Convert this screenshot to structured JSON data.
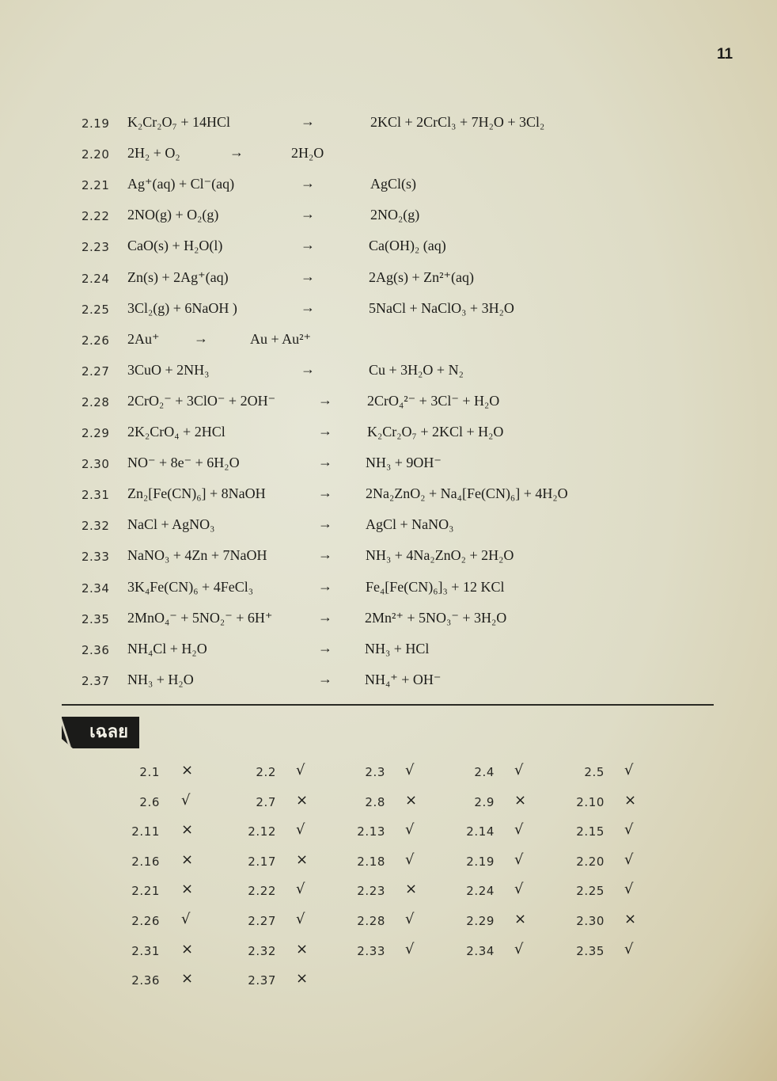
{
  "page_number": "11",
  "equations": [
    {
      "num": "2.19",
      "reactants": "K₂Cr₂O₇ + 14HCl",
      "arrow": "→",
      "products": "2KCl + 2CrCl₃ + 7H₂O + 3Cl₂"
    },
    {
      "num": "2.20",
      "reactants": "2H₂ + O₂",
      "arrow": "→",
      "products": "2H₂O"
    },
    {
      "num": "2.21",
      "reactants": "Ag⁺(aq) + Cl⁻(aq)",
      "arrow": "→",
      "products": "AgCl(s)"
    },
    {
      "num": "2.22",
      "reactants": "2NO(g) + O₂(g)",
      "arrow": "→",
      "products": "2NO₂(g)"
    },
    {
      "num": "2.23",
      "reactants": "CaO(s) + H₂O(l)",
      "arrow": "→",
      "products": "Ca(OH)₂ (aq)"
    },
    {
      "num": "2.24",
      "reactants": "Zn(s) + 2Ag⁺(aq)",
      "arrow": "→",
      "products": "2Ag(s) + Zn²⁺(aq)"
    },
    {
      "num": "2.25",
      "reactants": "3Cl₂(g) + 6NaOH )",
      "arrow": "→",
      "products": "5NaCl + NaClO₃ + 3H₂O"
    },
    {
      "num": "2.26",
      "reactants": "2Au⁺",
      "arrow": "→",
      "products": "Au + Au²⁺"
    },
    {
      "num": "2.27",
      "reactants": "3CuO + 2NH₃",
      "arrow": "→",
      "products": "Cu + 3H₂O + N₂"
    },
    {
      "num": "2.28",
      "reactants": "2CrO₂⁻ + 3ClO⁻ + 2OH⁻",
      "arrow": "→",
      "products": "2CrO₄²⁻ + 3Cl⁻ + H₂O"
    },
    {
      "num": "2.29",
      "reactants": "2K₂CrO₄ + 2HCl",
      "arrow": "→",
      "products": "K₂Cr₂O₇ + 2KCl + H₂O"
    },
    {
      "num": "2.30",
      "reactants": "NO⁻ + 8e⁻ + 6H₂O",
      "arrow": "→",
      "products": "NH₃ + 9OH⁻"
    },
    {
      "num": "2.31",
      "reactants": "Zn₂[Fe(CN)₆] + 8NaOH",
      "arrow": "→",
      "products": "2Na₂ZnO₂ + Na₄[Fe(CN)₆] + 4H₂O"
    },
    {
      "num": "2.32",
      "reactants": "NaCl + AgNO₃",
      "arrow": "→",
      "products": "AgCl + NaNO₃"
    },
    {
      "num": "2.33",
      "reactants": "NaNO₃ + 4Zn + 7NaOH",
      "arrow": "→",
      "products": "NH₃ + 4Na₂ZnO₂ + 2H₂O"
    },
    {
      "num": "2.34",
      "reactants": "3K₄Fe(CN)₆ + 4FeCl₃",
      "arrow": "→",
      "products": "Fe₄[Fe(CN)₆]₃ + 12 KCl"
    },
    {
      "num": "2.35",
      "reactants": "2MnO₄⁻ + 5NO₂⁻ + 6H⁺",
      "arrow": "→",
      "products": "2Mn²⁺ + 5NO₃⁻ + 3H₂O"
    },
    {
      "num": "2.36",
      "reactants": "NH₄Cl + H₂O",
      "arrow": "→",
      "products": "NH₃ + HCl"
    },
    {
      "num": "2.37",
      "reactants": "NH₃ + H₂O",
      "arrow": "→",
      "products": "NH₄⁺ + OH⁻"
    }
  ],
  "answers_heading": "เฉลย",
  "answers": [
    {
      "num": "2.1",
      "mark": "×"
    },
    {
      "num": "2.2",
      "mark": "√"
    },
    {
      "num": "2.3",
      "mark": "√"
    },
    {
      "num": "2.4",
      "mark": "√"
    },
    {
      "num": "2.5",
      "mark": "√"
    },
    {
      "num": "2.6",
      "mark": "√"
    },
    {
      "num": "2.7",
      "mark": "×"
    },
    {
      "num": "2.8",
      "mark": "×"
    },
    {
      "num": "2.9",
      "mark": "×"
    },
    {
      "num": "2.10",
      "mark": "×"
    },
    {
      "num": "2.11",
      "mark": "×"
    },
    {
      "num": "2.12",
      "mark": "√"
    },
    {
      "num": "2.13",
      "mark": "√"
    },
    {
      "num": "2.14",
      "mark": "√"
    },
    {
      "num": "2.15",
      "mark": "√"
    },
    {
      "num": "2.16",
      "mark": "×"
    },
    {
      "num": "2.17",
      "mark": "×"
    },
    {
      "num": "2.18",
      "mark": "√"
    },
    {
      "num": "2.19",
      "mark": "√"
    },
    {
      "num": "2.20",
      "mark": "√"
    },
    {
      "num": "2.21",
      "mark": "×"
    },
    {
      "num": "2.22",
      "mark": "√"
    },
    {
      "num": "2.23",
      "mark": "×"
    },
    {
      "num": "2.24",
      "mark": "√"
    },
    {
      "num": "2.25",
      "mark": "√"
    },
    {
      "num": "2.26",
      "mark": "√"
    },
    {
      "num": "2.27",
      "mark": "√"
    },
    {
      "num": "2.28",
      "mark": "√"
    },
    {
      "num": "2.29",
      "mark": "×"
    },
    {
      "num": "2.30",
      "mark": "×"
    },
    {
      "num": "2.31",
      "mark": "×"
    },
    {
      "num": "2.32",
      "mark": "×"
    },
    {
      "num": "2.33",
      "mark": "√"
    },
    {
      "num": "2.34",
      "mark": "√"
    },
    {
      "num": "2.35",
      "mark": "√"
    },
    {
      "num": "2.36",
      "mark": "×"
    },
    {
      "num": "2.37",
      "mark": "×"
    }
  ]
}
